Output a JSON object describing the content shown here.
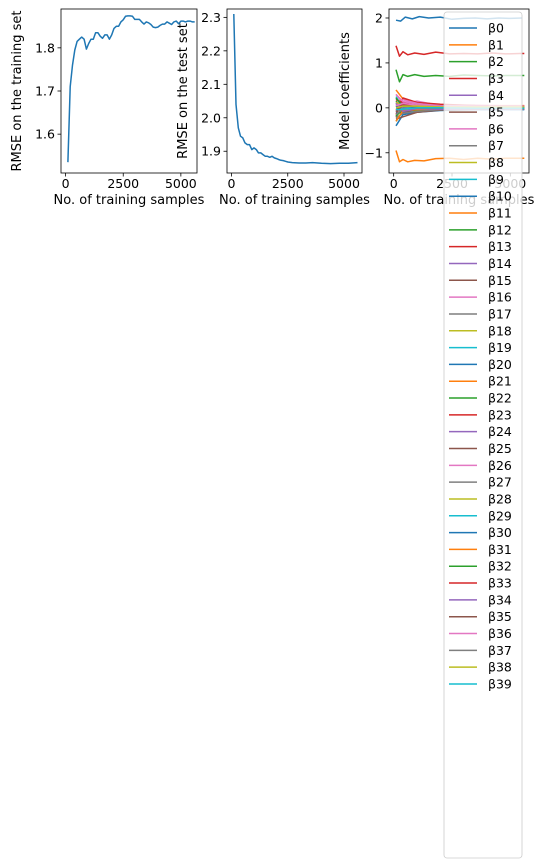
{
  "chart_data": [
    {
      "type": "line",
      "xlabel": "No. of training samples",
      "ylabel": "RMSE on the training set",
      "xlim": [
        -200,
        5700
      ],
      "ylim": [
        1.51,
        1.89
      ],
      "xticks": [
        0,
        2500,
        5000
      ],
      "yticks": [
        1.6,
        1.7,
        1.8
      ],
      "series": [
        {
          "color": "#1f77b4",
          "x": [
            100,
            200,
            300,
            400,
            500,
            600,
            700,
            800,
            900,
            1000,
            1100,
            1200,
            1300,
            1400,
            1500,
            1600,
            1700,
            1800,
            1900,
            2000,
            2100,
            2200,
            2300,
            2400,
            2500,
            2600,
            2700,
            2800,
            2900,
            3000,
            3100,
            3200,
            3300,
            3400,
            3500,
            3600,
            3700,
            3800,
            3900,
            4000,
            4100,
            4200,
            4300,
            4400,
            4500,
            4600,
            4700,
            4800,
            4900,
            5000,
            5100,
            5200,
            5300,
            5400,
            5500,
            5600
          ],
          "y": [
            1.535,
            1.71,
            1.76,
            1.795,
            1.815,
            1.82,
            1.825,
            1.82,
            1.797,
            1.81,
            1.82,
            1.82,
            1.835,
            1.835,
            1.827,
            1.822,
            1.83,
            1.83,
            1.82,
            1.83,
            1.845,
            1.85,
            1.85,
            1.86,
            1.865,
            1.873,
            1.874,
            1.874,
            1.873,
            1.866,
            1.866,
            1.866,
            1.86,
            1.855,
            1.86,
            1.858,
            1.854,
            1.848,
            1.847,
            1.848,
            1.852,
            1.855,
            1.855,
            1.86,
            1.857,
            1.854,
            1.86,
            1.862,
            1.856,
            1.862,
            1.862,
            1.86,
            1.862,
            1.862,
            1.86,
            1.86
          ]
        }
      ]
    },
    {
      "type": "line",
      "xlabel": "No. of training samples",
      "ylabel": "RMSE on the test set",
      "xlim": [
        -200,
        5800
      ],
      "ylim": [
        1.835,
        2.325
      ],
      "xticks": [
        0,
        2500,
        5000
      ],
      "yticks": [
        1.9,
        2.0,
        2.1,
        2.2,
        2.3
      ],
      "series": [
        {
          "color": "#1f77b4",
          "x": [
            100,
            200,
            300,
            400,
            500,
            600,
            700,
            800,
            900,
            1000,
            1100,
            1200,
            1300,
            1400,
            1500,
            1600,
            1700,
            1800,
            1900,
            2000,
            2100,
            2200,
            2300,
            2400,
            2500,
            2700,
            3000,
            3300,
            3600,
            4000,
            4400,
            4800,
            5200,
            5600
          ],
          "y": [
            2.31,
            2.04,
            1.97,
            1.945,
            1.94,
            1.925,
            1.92,
            1.92,
            1.905,
            1.91,
            1.905,
            1.895,
            1.895,
            1.89,
            1.885,
            1.885,
            1.882,
            1.885,
            1.88,
            1.878,
            1.875,
            1.873,
            1.872,
            1.87,
            1.868,
            1.866,
            1.865,
            1.865,
            1.866,
            1.864,
            1.863,
            1.864,
            1.864,
            1.866
          ]
        }
      ]
    },
    {
      "type": "line",
      "xlabel": "No. of training samples",
      "ylabel": "Model coefficients",
      "xlim": [
        -200,
        5800
      ],
      "ylim": [
        -1.45,
        2.2
      ],
      "xticks": [
        0,
        2500,
        5000
      ],
      "xtick_labels": [
        "0",
        "2500",
        "5000"
      ],
      "yticks": [
        -1,
        0,
        1,
        2
      ],
      "legend_position": "upper right",
      "series": [
        {
          "name": "β0",
          "color": "#1f77b4",
          "x": [
            100,
            300,
            500,
            800,
            1100,
            1500,
            2000,
            2500,
            3000,
            3500,
            4000,
            4500,
            5000,
            5500
          ],
          "y": [
            1.95,
            1.93,
            2.02,
            1.98,
            2.03,
            2.0,
            2.02,
            1.97,
            1.99,
            2.0,
            1.98,
            2.0,
            1.99,
            2.0
          ]
        },
        {
          "name": "β1",
          "color": "#ff7f0e",
          "x": [
            100,
            250,
            400,
            600,
            900,
            1300,
            1800,
            2400,
            3000,
            3600,
            4200,
            4800,
            5400,
            5600
          ],
          "y": [
            -0.95,
            -1.2,
            -1.15,
            -1.2,
            -1.17,
            -1.18,
            -1.13,
            -1.12,
            -1.15,
            -1.12,
            -1.14,
            -1.12,
            -1.12,
            -1.12
          ]
        },
        {
          "name": "β2",
          "color": "#2ca02c",
          "x": [
            100,
            250,
            400,
            600,
            900,
            1300,
            1800,
            2400,
            3000,
            3600,
            4200,
            4800,
            5400,
            5600
          ],
          "y": [
            0.85,
            0.58,
            0.74,
            0.7,
            0.74,
            0.7,
            0.72,
            0.7,
            0.73,
            0.72,
            0.71,
            0.72,
            0.72,
            0.72
          ]
        },
        {
          "name": "β3",
          "color": "#d62728",
          "x": [
            100,
            250,
            400,
            600,
            900,
            1300,
            1800,
            2400,
            3000,
            3600,
            4200,
            4800,
            5400,
            5600
          ],
          "y": [
            1.38,
            1.15,
            1.25,
            1.18,
            1.22,
            1.19,
            1.24,
            1.2,
            1.21,
            1.2,
            1.22,
            1.2,
            1.21,
            1.21
          ]
        },
        {
          "name": "β4",
          "color": "#9467bd",
          "x": [
            100,
            400,
            1000,
            2000,
            3500,
            5600
          ],
          "y": [
            0.12,
            -0.05,
            0.06,
            0.02,
            0.03,
            0.02
          ]
        },
        {
          "name": "β5",
          "color": "#8c564b",
          "x": [
            100,
            400,
            1000,
            2000,
            3500,
            5600
          ],
          "y": [
            -0.2,
            0.05,
            -0.05,
            0.0,
            -0.02,
            -0.01
          ]
        },
        {
          "name": "β6",
          "color": "#e377c2",
          "x": [
            100,
            400,
            1000,
            2000,
            3500,
            5600
          ],
          "y": [
            0.3,
            0.1,
            0.15,
            0.05,
            0.06,
            0.04
          ]
        },
        {
          "name": "β7",
          "color": "#7f7f7f",
          "x": [
            100,
            400,
            1000,
            2000,
            3500,
            5600
          ],
          "y": [
            -0.1,
            -0.12,
            -0.05,
            -0.03,
            -0.02,
            -0.02
          ]
        },
        {
          "name": "β8",
          "color": "#bcbd22",
          "x": [
            100,
            400,
            1000,
            2000,
            3500,
            5600
          ],
          "y": [
            0.05,
            0.12,
            0.02,
            0.04,
            0.01,
            0.02
          ]
        },
        {
          "name": "β9",
          "color": "#17becf",
          "x": [
            100,
            400,
            1000,
            2000,
            3500,
            5600
          ],
          "y": [
            -0.3,
            -0.08,
            -0.06,
            -0.02,
            -0.03,
            -0.01
          ]
        },
        {
          "name": "β10",
          "color": "#1f77b4",
          "x": [
            100,
            400,
            1000,
            2000,
            3500,
            5600
          ],
          "y": [
            -0.4,
            -0.15,
            -0.1,
            -0.06,
            -0.04,
            -0.04
          ]
        },
        {
          "name": "β11",
          "color": "#ff7f0e",
          "x": [
            100,
            400,
            1000,
            2000,
            3500,
            5600
          ],
          "y": [
            0.4,
            0.2,
            0.1,
            0.06,
            0.05,
            0.05
          ]
        },
        {
          "name": "β12",
          "color": "#2ca02c",
          "x": [
            100,
            400,
            1000,
            2000,
            3500,
            5600
          ],
          "y": [
            0.15,
            -0.03,
            0.03,
            0.01,
            0.0,
            0.01
          ]
        },
        {
          "name": "β13",
          "color": "#d62728",
          "x": [
            100,
            400,
            1000,
            2000,
            3500,
            5600
          ],
          "y": [
            -0.15,
            0.22,
            0.12,
            0.08,
            0.05,
            0.04
          ]
        },
        {
          "name": "β14",
          "color": "#9467bd",
          "x": [
            100,
            400,
            1000,
            2000,
            3500,
            5600
          ],
          "y": [
            0.2,
            0.08,
            -0.02,
            0.0,
            -0.01,
            0.0
          ]
        },
        {
          "name": "β15",
          "color": "#8c564b",
          "x": [
            100,
            400,
            1000,
            2000,
            3500,
            5600
          ],
          "y": [
            -0.25,
            -0.2,
            -0.1,
            -0.05,
            -0.03,
            -0.03
          ]
        },
        {
          "name": "β16",
          "color": "#e377c2",
          "x": [
            100,
            400,
            1000,
            2000,
            3500,
            5600
          ],
          "y": [
            0.1,
            0.18,
            0.1,
            0.03,
            0.02,
            0.03
          ]
        },
        {
          "name": "β17",
          "color": "#7f7f7f",
          "x": [
            100,
            400,
            1000,
            2000,
            3500,
            5600
          ],
          "y": [
            0.0,
            -0.06,
            0.04,
            0.02,
            0.01,
            0.01
          ]
        },
        {
          "name": "β18",
          "color": "#bcbd22",
          "x": [
            100,
            400,
            1000,
            2000,
            3500,
            5600
          ],
          "y": [
            -0.05,
            0.1,
            -0.04,
            -0.01,
            0.0,
            -0.01
          ]
        },
        {
          "name": "β19",
          "color": "#17becf",
          "x": [
            100,
            400,
            1000,
            2000,
            3500,
            5600
          ],
          "y": [
            0.25,
            0.0,
            0.07,
            0.02,
            0.03,
            0.02
          ]
        },
        {
          "name": "β20",
          "color": "#1f77b4",
          "x": [
            100,
            400,
            1000,
            2000,
            3500,
            5600
          ],
          "y": [
            -0.12,
            -0.1,
            -0.03,
            -0.02,
            -0.02,
            -0.02
          ]
        },
        {
          "name": "β21",
          "color": "#ff7f0e",
          "x": [
            100,
            400,
            1000,
            2000,
            3500,
            5600
          ],
          "y": [
            0.08,
            0.04,
            0.08,
            0.04,
            0.03,
            0.03
          ]
        },
        {
          "name": "β22",
          "color": "#2ca02c",
          "x": [
            100,
            400,
            1000,
            2000,
            3500,
            5600
          ],
          "y": [
            -0.18,
            -0.04,
            -0.06,
            -0.03,
            -0.02,
            -0.02
          ]
        },
        {
          "name": "β23",
          "color": "#d62728",
          "x": [
            100,
            400,
            1000,
            2000,
            3500,
            5600
          ],
          "y": [
            0.18,
            0.12,
            0.05,
            0.01,
            0.02,
            0.01
          ]
        },
        {
          "name": "β24",
          "color": "#9467bd",
          "x": [
            100,
            400,
            1000,
            2000,
            3500,
            5600
          ],
          "y": [
            -0.08,
            0.02,
            -0.02,
            0.0,
            0.0,
            0.0
          ]
        },
        {
          "name": "β25",
          "color": "#8c564b",
          "x": [
            100,
            400,
            1000,
            2000,
            3500,
            5600
          ],
          "y": [
            0.05,
            -0.1,
            -0.03,
            -0.01,
            -0.01,
            -0.01
          ]
        },
        {
          "name": "β26",
          "color": "#e377c2",
          "x": [
            100,
            400,
            1000,
            2000,
            3500,
            5600
          ],
          "y": [
            0.3,
            0.14,
            0.09,
            0.05,
            0.04,
            0.04
          ]
        },
        {
          "name": "β27",
          "color": "#7f7f7f",
          "x": [
            100,
            400,
            1000,
            2000,
            3500,
            5600
          ],
          "y": [
            -0.22,
            -0.12,
            -0.08,
            -0.04,
            -0.03,
            -0.03
          ]
        },
        {
          "name": "β28",
          "color": "#bcbd22",
          "x": [
            100,
            400,
            1000,
            2000,
            3500,
            5600
          ],
          "y": [
            0.12,
            0.06,
            0.0,
            0.02,
            0.01,
            0.02
          ]
        },
        {
          "name": "β29",
          "color": "#17becf",
          "x": [
            100,
            400,
            1000,
            2000,
            3500,
            5600
          ],
          "y": [
            -0.02,
            -0.02,
            0.02,
            -0.01,
            0.0,
            0.0
          ]
        },
        {
          "name": "β30",
          "color": "#1f77b4",
          "x": [
            100,
            400,
            1000,
            2000,
            3500,
            5600
          ],
          "y": [
            0.02,
            0.05,
            0.01,
            0.01,
            0.01,
            0.01
          ]
        },
        {
          "name": "β31",
          "color": "#ff7f0e",
          "x": [
            100,
            400,
            1000,
            2000,
            3500,
            5600
          ],
          "y": [
            -0.3,
            -0.06,
            -0.04,
            -0.02,
            -0.01,
            -0.01
          ]
        },
        {
          "name": "β32",
          "color": "#2ca02c",
          "x": [
            100,
            400,
            1000,
            2000,
            3500,
            5600
          ],
          "y": [
            0.22,
            0.03,
            0.05,
            0.03,
            0.02,
            0.02
          ]
        },
        {
          "name": "β33",
          "color": "#d62728",
          "x": [
            100,
            400,
            1000,
            2000,
            3500,
            5600
          ],
          "y": [
            -0.06,
            0.08,
            0.03,
            0.0,
            0.01,
            0.0
          ]
        },
        {
          "name": "β34",
          "color": "#9467bd",
          "x": [
            100,
            400,
            1000,
            2000,
            3500,
            5600
          ],
          "y": [
            0.1,
            -0.08,
            -0.02,
            -0.03,
            -0.02,
            -0.02
          ]
        },
        {
          "name": "β35",
          "color": "#8c564b",
          "x": [
            100,
            400,
            1000,
            2000,
            3500,
            5600
          ],
          "y": [
            -0.1,
            0.06,
            0.02,
            0.02,
            0.01,
            0.01
          ]
        },
        {
          "name": "β36",
          "color": "#e377c2",
          "x": [
            100,
            400,
            1000,
            2000,
            3500,
            5600
          ],
          "y": [
            0.05,
            0.1,
            0.06,
            0.03,
            0.03,
            0.03
          ]
        },
        {
          "name": "β37",
          "color": "#7f7f7f",
          "x": [
            100,
            400,
            1000,
            2000,
            3500,
            5600
          ],
          "y": [
            -0.15,
            -0.02,
            -0.01,
            -0.01,
            0.0,
            0.0
          ]
        },
        {
          "name": "β38",
          "color": "#bcbd22",
          "x": [
            100,
            400,
            1000,
            2000,
            3500,
            5600
          ],
          "y": [
            0.0,
            0.04,
            0.04,
            0.02,
            0.02,
            0.02
          ]
        },
        {
          "name": "β39",
          "color": "#17becf",
          "x": [
            100,
            400,
            1000,
            2000,
            3500,
            5600
          ],
          "y": [
            -0.04,
            -0.03,
            0.0,
            0.0,
            -0.01,
            -0.01
          ]
        }
      ]
    }
  ]
}
